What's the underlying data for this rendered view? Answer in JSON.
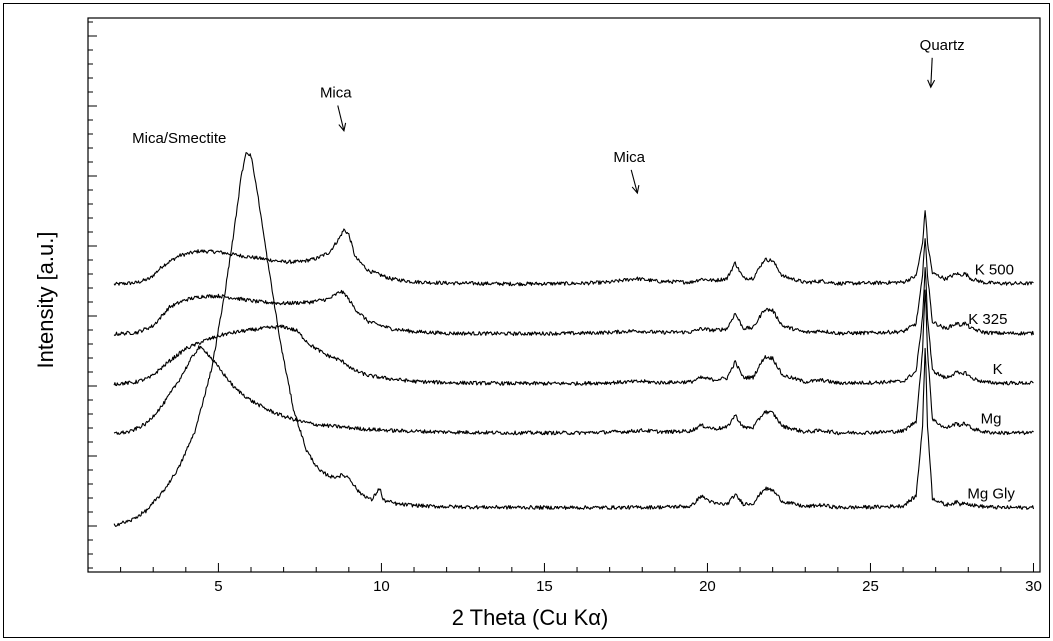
{
  "chart_data": {
    "type": "line",
    "title": "",
    "xlabel": "2 Theta (Cu Kα)",
    "ylabel": "Intensity [a.u.]",
    "xlim": [
      1,
      30.2
    ],
    "ylim": [
      0,
      100
    ],
    "x_ticks": [
      5,
      10,
      15,
      20,
      25,
      30
    ],
    "x_tick_labels": [
      "5",
      "10",
      "15",
      "20",
      "25",
      "30"
    ],
    "grid": false,
    "y_tick_values": false,
    "series": [
      {
        "name": "K 500",
        "offset": 58,
        "label_x": 28.8,
        "points": [
          [
            1.8,
            0
          ],
          [
            2.5,
            0.4
          ],
          [
            2.9,
            1.4
          ],
          [
            3.3,
            4.5
          ],
          [
            3.8,
            6.9
          ],
          [
            4.4,
            8
          ],
          [
            5,
            7.8
          ],
          [
            5.6,
            7
          ],
          [
            6.3,
            6.2
          ],
          [
            7,
            5.4
          ],
          [
            7.5,
            5.4
          ],
          [
            8,
            6.2
          ],
          [
            8.4,
            7.7
          ],
          [
            8.7,
            11
          ],
          [
            8.85,
            13.2
          ],
          [
            9,
            12
          ],
          [
            9.2,
            6.5
          ],
          [
            9.6,
            3.3
          ],
          [
            10.3,
            1.3
          ],
          [
            11,
            0.6
          ],
          [
            12,
            0.3
          ],
          [
            14,
            0.1
          ],
          [
            16,
            0.2
          ],
          [
            17,
            0.5
          ],
          [
            17.8,
            1.4
          ],
          [
            18.5,
            0.7
          ],
          [
            19.5,
            0.5
          ],
          [
            19.8,
            1.3
          ],
          [
            20.2,
            0.9
          ],
          [
            20.6,
            1.4
          ],
          [
            20.85,
            5.2
          ],
          [
            21.1,
            1.5
          ],
          [
            21.4,
            1.5
          ],
          [
            21.75,
            6
          ],
          [
            22,
            5.7
          ],
          [
            22.3,
            2
          ],
          [
            23,
            0.4
          ],
          [
            23.5,
            0.8
          ],
          [
            24,
            0.2
          ],
          [
            25,
            0.3
          ],
          [
            26,
            0.5
          ],
          [
            26.4,
            2
          ],
          [
            26.6,
            10
          ],
          [
            26.68,
            18.4
          ],
          [
            26.75,
            10
          ],
          [
            26.9,
            2.7
          ],
          [
            27.3,
            1.3
          ],
          [
            27.65,
            2.6
          ],
          [
            27.75,
            2.2
          ],
          [
            27.9,
            2.6
          ],
          [
            28.1,
            1.3
          ],
          [
            28.5,
            0.4
          ],
          [
            29,
            0.2
          ],
          [
            30,
            0.2
          ]
        ]
      },
      {
        "name": "K 325",
        "offset": 46,
        "label_x": 28.6,
        "points": [
          [
            1.8,
            0
          ],
          [
            2.5,
            0.4
          ],
          [
            3,
            2
          ],
          [
            3.5,
            6.5
          ],
          [
            4,
            8.3
          ],
          [
            4.5,
            9.1
          ],
          [
            5,
            9.2
          ],
          [
            5.5,
            8.7
          ],
          [
            6.2,
            7.8
          ],
          [
            7,
            7.4
          ],
          [
            7.8,
            7.7
          ],
          [
            8.4,
            8.5
          ],
          [
            8.75,
            10.3
          ],
          [
            8.9,
            9.5
          ],
          [
            9.2,
            6
          ],
          [
            9.6,
            3
          ],
          [
            10.3,
            1.3
          ],
          [
            11,
            0.6
          ],
          [
            12,
            0.2
          ],
          [
            14,
            0.1
          ],
          [
            16,
            0.2
          ],
          [
            17,
            0.4
          ],
          [
            17.8,
            0.8
          ],
          [
            18.5,
            0.4
          ],
          [
            19.5,
            0.5
          ],
          [
            19.8,
            1.3
          ],
          [
            20.2,
            0.9
          ],
          [
            20.6,
            1.3
          ],
          [
            20.85,
            5
          ],
          [
            21.1,
            1.4
          ],
          [
            21.4,
            1.5
          ],
          [
            21.75,
            6
          ],
          [
            22,
            5.7
          ],
          [
            22.3,
            2
          ],
          [
            23,
            0.4
          ],
          [
            23.5,
            0.8
          ],
          [
            24,
            0.2
          ],
          [
            25,
            0.3
          ],
          [
            26,
            0.6
          ],
          [
            26.4,
            2.5
          ],
          [
            26.6,
            14
          ],
          [
            26.68,
            24
          ],
          [
            26.75,
            14
          ],
          [
            26.9,
            3
          ],
          [
            27.3,
            1.3
          ],
          [
            27.65,
            2.6
          ],
          [
            27.75,
            2.2
          ],
          [
            27.9,
            2.6
          ],
          [
            28.1,
            1.3
          ],
          [
            28.5,
            0.4
          ],
          [
            29,
            0.2
          ],
          [
            30,
            0.2
          ]
        ]
      },
      {
        "name": "K",
        "offset": 34,
        "label_x": 28.9,
        "points": [
          [
            1.8,
            0
          ],
          [
            2.4,
            0.3
          ],
          [
            2.9,
            1.5
          ],
          [
            3.5,
            5.5
          ],
          [
            4,
            8.5
          ],
          [
            4.6,
            10.5
          ],
          [
            5.2,
            12
          ],
          [
            5.8,
            12.8
          ],
          [
            6.5,
            13.5
          ],
          [
            7,
            13.8
          ],
          [
            7.4,
            12.8
          ],
          [
            7.8,
            9.5
          ],
          [
            8.3,
            7
          ],
          [
            8.7,
            5.8
          ],
          [
            8.9,
            5
          ],
          [
            9.1,
            3.5
          ],
          [
            9.6,
            2
          ],
          [
            10.3,
            1.2
          ],
          [
            11,
            0.6
          ],
          [
            12,
            0.3
          ],
          [
            14,
            0.1
          ],
          [
            16,
            0.1
          ],
          [
            17,
            0.3
          ],
          [
            18,
            0.6
          ],
          [
            18.5,
            0.3
          ],
          [
            19.5,
            0.5
          ],
          [
            19.8,
            1.5
          ],
          [
            20.2,
            1
          ],
          [
            20.6,
            1.4
          ],
          [
            20.85,
            5.3
          ],
          [
            21.1,
            1.5
          ],
          [
            21.4,
            1.6
          ],
          [
            21.75,
            6.5
          ],
          [
            22,
            6.2
          ],
          [
            22.3,
            2.1
          ],
          [
            23,
            0.5
          ],
          [
            23.5,
            0.9
          ],
          [
            24,
            0.2
          ],
          [
            25,
            0.3
          ],
          [
            26,
            0.6
          ],
          [
            26.4,
            3
          ],
          [
            26.6,
            16
          ],
          [
            26.68,
            29
          ],
          [
            26.75,
            16
          ],
          [
            26.9,
            3.2
          ],
          [
            27.3,
            1.4
          ],
          [
            27.65,
            2.8
          ],
          [
            27.75,
            2.3
          ],
          [
            27.9,
            2.8
          ],
          [
            28.1,
            1.4
          ],
          [
            28.5,
            0.4
          ],
          [
            29,
            0.2
          ],
          [
            30,
            0.2
          ]
        ]
      },
      {
        "name": "Mg",
        "offset": 22,
        "label_x": 28.7,
        "points": [
          [
            1.8,
            0
          ],
          [
            2.3,
            0.5
          ],
          [
            2.8,
            2.5
          ],
          [
            3.3,
            7
          ],
          [
            3.8,
            13
          ],
          [
            4.2,
            18.5
          ],
          [
            4.4,
            20.8
          ],
          [
            4.6,
            20
          ],
          [
            5,
            16
          ],
          [
            5.5,
            11
          ],
          [
            6,
            8
          ],
          [
            6.5,
            5.8
          ],
          [
            7,
            4.2
          ],
          [
            7.5,
            3
          ],
          [
            8,
            2.2
          ],
          [
            8.8,
            1.6
          ],
          [
            9.5,
            1.1
          ],
          [
            10.5,
            0.7
          ],
          [
            12,
            0.4
          ],
          [
            14,
            0.2
          ],
          [
            16,
            0.2
          ],
          [
            17.5,
            0.5
          ],
          [
            18,
            0.8
          ],
          [
            18.7,
            0.4
          ],
          [
            19.5,
            0.7
          ],
          [
            19.8,
            2
          ],
          [
            20.2,
            1.2
          ],
          [
            20.6,
            1.5
          ],
          [
            20.85,
            4.5
          ],
          [
            21.1,
            1.5
          ],
          [
            21.4,
            1.5
          ],
          [
            21.75,
            5.3
          ],
          [
            22,
            5
          ],
          [
            22.3,
            1.8
          ],
          [
            23,
            0.4
          ],
          [
            23.5,
            0.8
          ],
          [
            24,
            0.2
          ],
          [
            25,
            0.3
          ],
          [
            26,
            0.6
          ],
          [
            26.4,
            3
          ],
          [
            26.6,
            20
          ],
          [
            26.68,
            36
          ],
          [
            26.75,
            20
          ],
          [
            26.9,
            3.5
          ],
          [
            27.3,
            1.3
          ],
          [
            27.65,
            2.5
          ],
          [
            27.75,
            2
          ],
          [
            27.9,
            2.5
          ],
          [
            28.1,
            1.3
          ],
          [
            28.5,
            0.4
          ],
          [
            29,
            0.2
          ],
          [
            30,
            0.2
          ]
        ]
      },
      {
        "name": "Mg Gly",
        "offset": 0,
        "label_x": 28.7,
        "points": [
          [
            1.8,
            0
          ],
          [
            2.3,
            1
          ],
          [
            2.8,
            3.5
          ],
          [
            3.3,
            8
          ],
          [
            3.8,
            14
          ],
          [
            4.3,
            23
          ],
          [
            4.8,
            38
          ],
          [
            5.2,
            56
          ],
          [
            5.5,
            72
          ],
          [
            5.7,
            84
          ],
          [
            5.85,
            90
          ],
          [
            6,
            89
          ],
          [
            6.2,
            80
          ],
          [
            6.5,
            64
          ],
          [
            6.9,
            44
          ],
          [
            7.3,
            28
          ],
          [
            7.7,
            18
          ],
          [
            8.1,
            13
          ],
          [
            8.5,
            11.5
          ],
          [
            8.8,
            12
          ],
          [
            9,
            11.5
          ],
          [
            9.3,
            8
          ],
          [
            9.7,
            6
          ],
          [
            9.95,
            9
          ],
          [
            10.05,
            6
          ],
          [
            10.5,
            5
          ],
          [
            11.5,
            4.5
          ],
          [
            13,
            4.3
          ],
          [
            15,
            4.2
          ],
          [
            17,
            4.2
          ],
          [
            18.5,
            4.3
          ],
          [
            19.5,
            4.5
          ],
          [
            19.8,
            7
          ],
          [
            20.2,
            5.2
          ],
          [
            20.6,
            5
          ],
          [
            20.85,
            7.3
          ],
          [
            21.1,
            5.1
          ],
          [
            21.4,
            5.2
          ],
          [
            21.75,
            8.8
          ],
          [
            22,
            8.4
          ],
          [
            22.3,
            5.7
          ],
          [
            23,
            4.4
          ],
          [
            23.5,
            4.8
          ],
          [
            24,
            4.2
          ],
          [
            25,
            4.3
          ],
          [
            26,
            4.6
          ],
          [
            26.4,
            7
          ],
          [
            26.6,
            24
          ],
          [
            26.68,
            44
          ],
          [
            26.75,
            24
          ],
          [
            26.9,
            6.5
          ],
          [
            27.3,
            4.8
          ],
          [
            27.65,
            5.5
          ],
          [
            27.75,
            5
          ],
          [
            27.9,
            5.5
          ],
          [
            28.1,
            4.8
          ],
          [
            28.5,
            4.4
          ],
          [
            29,
            4.2
          ],
          [
            30,
            4.2
          ]
        ]
      }
    ],
    "annotations": [
      {
        "text": "Mica/Smectite",
        "x": 3.8,
        "y": 92,
        "arrow": false
      },
      {
        "text": "Mica",
        "x": 8.6,
        "y": 103,
        "arrow": true,
        "arrow_to": [
          8.85,
          95
        ]
      },
      {
        "text": "Mica",
        "x": 17.6,
        "y": 87.5,
        "arrow": true,
        "arrow_to": [
          17.85,
          80
        ]
      },
      {
        "text": "Quartz",
        "x": 27.2,
        "y": 114.5,
        "arrow": true,
        "arrow_to": [
          26.85,
          105.5
        ]
      }
    ]
  }
}
